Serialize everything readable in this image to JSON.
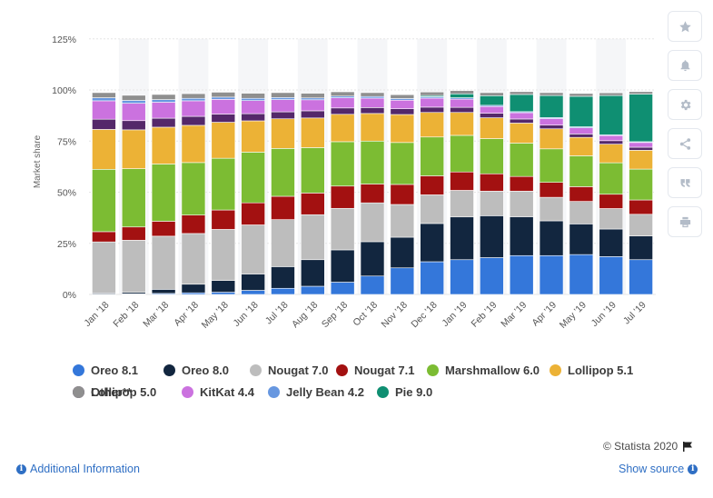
{
  "colors": {
    "oreo81": "#3477da",
    "oreo80": "#12263f",
    "nougat70": "#bdbdbd",
    "nougat71": "#a31111",
    "marshmallow": "#7cbc33",
    "lollipop51": "#ecb236",
    "lollipop50": "#54286a",
    "kitkat": "#cb72df",
    "jellybean": "#6797e0",
    "pie": "#0f8f72",
    "other": "#8f8f8f"
  },
  "chart_data": {
    "type": "bar",
    "stacked": true,
    "ylabel": "Market share",
    "ylim": [
      0,
      125
    ],
    "yticks": [
      "0%",
      "25%",
      "50%",
      "75%",
      "100%",
      "125%"
    ],
    "categories": [
      "Jan '18",
      "Feb '18",
      "Mar '18",
      "Apr '18",
      "May '18",
      "Jun '18",
      "Jul '18",
      "Aug '18",
      "Sep '18",
      "Oct '18",
      "Nov '18",
      "Dec '18",
      "Jan '19",
      "Feb '19",
      "Mar '19",
      "Apr '19",
      "May '19",
      "Jun '19",
      "Jul '19"
    ],
    "series": [
      {
        "name": "Oreo 8.1",
        "color_key": "oreo81",
        "values": [
          0.2,
          0.3,
          0.5,
          0.8,
          1.1,
          2,
          3,
          4,
          6,
          9,
          13,
          16,
          17,
          18,
          19,
          19,
          19.5,
          18.5,
          17
        ]
      },
      {
        "name": "Oreo 8.0",
        "color_key": "oreo80",
        "values": [
          0.5,
          0.7,
          2,
          4.2,
          5.7,
          8,
          10.6,
          13,
          15.8,
          16.8,
          15,
          18.7,
          20.9,
          20.5,
          19,
          17,
          15,
          13.5,
          11.6
        ]
      },
      {
        "name": "Nougat 7.0",
        "color_key": "nougat70",
        "values": [
          25,
          25.5,
          26,
          24.8,
          25,
          24,
          23,
          22,
          20.3,
          19,
          16,
          14,
          13,
          12,
          12.5,
          11.5,
          11,
          10,
          10.6
        ]
      },
      {
        "name": "Nougat 7.1",
        "color_key": "nougat71",
        "values": [
          5,
          6.5,
          7.3,
          9,
          9.5,
          10.8,
          11.4,
          10.6,
          10.9,
          9.2,
          9.8,
          9.3,
          9,
          8.5,
          7.2,
          7.3,
          7.2,
          7,
          7
        ]
      },
      {
        "name": "Marshmallow 6.0",
        "color_key": "marshmallow",
        "values": [
          30.5,
          28.5,
          28,
          25.7,
          25.3,
          24.8,
          23.4,
          22.2,
          21.7,
          21,
          20.5,
          19,
          17.9,
          17.2,
          16.3,
          16.4,
          15.1,
          15.4,
          15.1
        ]
      },
      {
        "name": "Lollipop 5.1",
        "color_key": "lollipop51",
        "values": [
          19.5,
          19,
          18,
          18.2,
          17.6,
          15.3,
          14.5,
          14.5,
          13.4,
          13.5,
          13.7,
          12,
          11.2,
          10.2,
          9.8,
          9.8,
          9,
          9.1,
          9.2
        ]
      },
      {
        "name": "Lollipop 5.0",
        "color_key": "lollipop50",
        "values": [
          5,
          4.5,
          4.4,
          4.4,
          4,
          3.5,
          3.4,
          3.5,
          3.1,
          2.9,
          2.8,
          2.6,
          2.5,
          2.2,
          2,
          1.8,
          1.7,
          1.7,
          1.5
        ]
      },
      {
        "name": "KitKat 4.4",
        "color_key": "kitkat",
        "values": [
          9,
          8.5,
          7.8,
          7.6,
          7.2,
          6.4,
          6,
          5.4,
          5,
          4.6,
          4.2,
          4.4,
          4,
          3.3,
          3.1,
          3.2,
          3,
          2.5,
          2.3
        ]
      },
      {
        "name": "Jelly Bean 4.2",
        "color_key": "jellybean",
        "values": [
          1.5,
          1.4,
          1.3,
          1.2,
          1.1,
          1.1,
          1,
          0.9,
          0.8,
          0.8,
          0.8,
          0.7,
          0.7,
          0.6,
          0.5,
          0.5,
          0.5,
          0.4,
          0.4
        ]
      },
      {
        "name": "Pie 9.0",
        "color_key": "pie",
        "values": [
          0,
          0,
          0,
          0,
          0,
          0,
          0,
          0,
          0,
          0,
          0,
          0.6,
          1.9,
          4.7,
          8.4,
          10.8,
          14.9,
          19.2,
          23.3
        ]
      },
      {
        "name": "Other**",
        "color_key": "other",
        "values": [
          2.5,
          2.5,
          2.5,
          2.3,
          2.4,
          2.5,
          2.4,
          2.3,
          2.1,
          1.9,
          1.9,
          1.7,
          1.6,
          1.5,
          1.4,
          1.4,
          1.4,
          1.3,
          1.2
        ]
      }
    ]
  },
  "legend": [
    {
      "label": "Oreo 8.1",
      "color_key": "oreo81"
    },
    {
      "label": "Oreo 8.0",
      "color_key": "oreo80"
    },
    {
      "label": "Nougat 7.0",
      "color_key": "nougat70"
    },
    {
      "label": "Nougat 7.1",
      "color_key": "nougat71"
    },
    {
      "label": "Marshmallow 6.0",
      "color_key": "marshmallow"
    },
    {
      "label": "Lollipop 5.1",
      "color_key": "lollipop51"
    },
    {
      "label": "Lollipop 5.0",
      "color_key": "lollipop50"
    },
    {
      "label": "KitKat 4.4",
      "color_key": "kitkat"
    },
    {
      "label": "Jelly Bean 4.2",
      "color_key": "jellybean"
    },
    {
      "label": "Pie 9.0",
      "color_key": "pie"
    },
    {
      "label": "Other**",
      "color_key": "other"
    }
  ],
  "toolbar": [
    {
      "name": "favorite-button",
      "icon": "star-icon"
    },
    {
      "name": "notification-button",
      "icon": "bell-icon"
    },
    {
      "name": "settings-button",
      "icon": "gear-icon"
    },
    {
      "name": "share-button",
      "icon": "share-icon"
    },
    {
      "name": "cite-button",
      "icon": "quote-icon"
    },
    {
      "name": "print-button",
      "icon": "print-icon"
    }
  ],
  "footer": {
    "credit": "© Statista 2020",
    "additional_info": "Additional Information",
    "show_source": "Show source"
  }
}
